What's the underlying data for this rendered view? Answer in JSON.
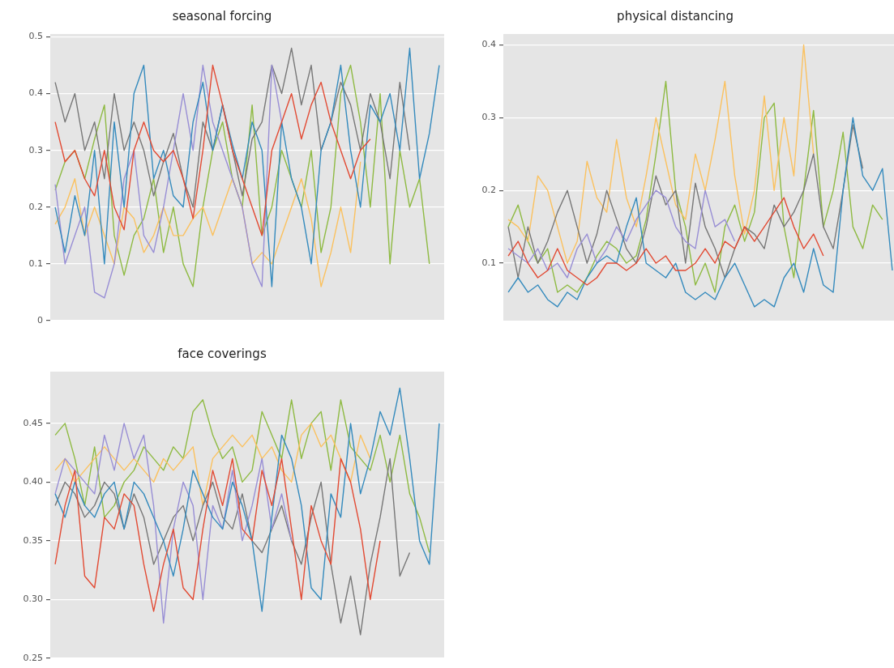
{
  "chart_data": [
    {
      "type": "line",
      "title": "seasonal forcing",
      "grid": "y",
      "tick_labels": "y",
      "marker": "none",
      "categories": [
        null,
        null,
        null,
        null,
        null,
        null,
        null,
        null,
        null,
        null,
        null,
        null,
        null,
        null,
        null,
        null,
        null,
        null,
        null,
        null,
        null,
        null,
        null,
        null,
        null,
        null,
        null,
        null,
        null,
        null,
        null,
        null,
        null,
        null,
        null,
        null,
        null,
        null,
        null,
        null
      ],
      "ylim": [
        0,
        0.505
      ],
      "yticks": [
        0,
        {
          "value": 0.1,
          "label": "0.1"
        },
        {
          "value": 0.2,
          "label": "0.2"
        },
        {
          "value": 0.3,
          "label": "0.3"
        },
        {
          "value": 0.4,
          "label": "0.4"
        },
        {
          "value": 0.5,
          "label": "0.5"
        }
      ],
      "series": [
        {
          "color": "#e24a33",
          "values": [
            0.35,
            0.28,
            0.3,
            0.25,
            0.22,
            0.3,
            0.2,
            0.16,
            0.3,
            0.35,
            0.3,
            0.28,
            0.3,
            0.25,
            0.18,
            0.3,
            0.45,
            0.38,
            0.3,
            0.25,
            0.2,
            0.15,
            0.3,
            0.35,
            0.4,
            0.32,
            0.38,
            0.42,
            0.35,
            0.3,
            0.25,
            0.3,
            0.32,
            null,
            null,
            null,
            null,
            null,
            null,
            null
          ]
        },
        {
          "color": "#348abd",
          "values": [
            0.2,
            0.12,
            0.22,
            0.15,
            0.3,
            0.1,
            0.35,
            0.2,
            0.4,
            0.45,
            0.25,
            0.3,
            0.22,
            0.2,
            0.35,
            0.42,
            0.3,
            0.38,
            0.31,
            0.25,
            0.35,
            0.3,
            0.06,
            0.35,
            0.25,
            0.2,
            0.1,
            0.3,
            0.35,
            0.45,
            0.3,
            0.2,
            0.38,
            0.35,
            0.4,
            0.3,
            0.48,
            0.25,
            0.33,
            0.45
          ]
        },
        {
          "color": "#988ed5",
          "values": [
            0.24,
            0.1,
            0.15,
            0.2,
            0.05,
            0.04,
            0.1,
            0.25,
            0.3,
            0.15,
            0.12,
            0.2,
            0.3,
            0.4,
            0.3,
            0.45,
            0.35,
            0.3,
            0.25,
            0.2,
            0.1,
            0.06,
            0.45,
            0.35,
            null,
            null,
            null,
            null,
            null,
            null,
            null,
            null,
            null,
            null,
            null,
            null,
            null,
            null,
            null,
            null
          ]
        },
        {
          "color": "#777777",
          "values": [
            0.42,
            0.35,
            0.4,
            0.3,
            0.35,
            0.25,
            0.4,
            0.3,
            0.35,
            0.3,
            0.22,
            0.28,
            0.33,
            0.25,
            0.2,
            0.35,
            0.3,
            0.38,
            0.3,
            0.22,
            0.32,
            0.35,
            0.45,
            0.4,
            0.48,
            0.38,
            0.45,
            0.3,
            0.35,
            0.42,
            0.38,
            0.3,
            0.4,
            0.35,
            0.25,
            0.42,
            0.3,
            null,
            null,
            null
          ]
        },
        {
          "color": "#fbc15e",
          "values": [
            0.17,
            0.2,
            0.25,
            0.15,
            0.2,
            0.15,
            0.1,
            0.2,
            0.18,
            0.12,
            0.15,
            0.2,
            0.15,
            0.15,
            0.18,
            0.2,
            0.15,
            0.2,
            0.25,
            0.2,
            0.1,
            0.12,
            0.1,
            0.15,
            0.2,
            0.25,
            0.18,
            0.06,
            0.12,
            0.2,
            0.12,
            0.28,
            null,
            null,
            null,
            null,
            null,
            null,
            null,
            null
          ]
        },
        {
          "color": "#8eba42",
          "values": [
            0.23,
            0.28,
            0.3,
            0.25,
            0.32,
            0.38,
            0.15,
            0.08,
            0.15,
            0.18,
            0.25,
            0.12,
            0.2,
            0.1,
            0.06,
            0.2,
            0.3,
            0.35,
            0.25,
            0.2,
            0.38,
            0.15,
            0.2,
            0.3,
            0.25,
            0.2,
            0.3,
            0.12,
            0.2,
            0.4,
            0.45,
            0.35,
            0.2,
            0.4,
            0.1,
            0.3,
            0.2,
            0.25,
            0.1,
            null
          ]
        }
      ]
    },
    {
      "type": "line",
      "title": "physical distancing",
      "grid": "y",
      "tick_labels": "y",
      "marker": "none",
      "categories": [
        null,
        null,
        null,
        null,
        null,
        null,
        null,
        null,
        null,
        null,
        null,
        null,
        null,
        null,
        null,
        null,
        null,
        null,
        null,
        null,
        null,
        null,
        null,
        null,
        null,
        null,
        null,
        null,
        null,
        null,
        null,
        null,
        null,
        null,
        null,
        null,
        null,
        null,
        null,
        null
      ],
      "ylim": [
        0.021,
        0.415
      ],
      "yticks": [
        {
          "value": 0.1,
          "label": "0.1"
        },
        {
          "value": 0.2,
          "label": "0.2"
        },
        {
          "value": 0.3,
          "label": "0.3"
        },
        {
          "value": 0.4,
          "label": "0.4"
        }
      ],
      "series": [
        {
          "color": "#e24a33",
          "values": [
            0.11,
            0.13,
            0.1,
            0.08,
            0.09,
            0.12,
            0.09,
            0.08,
            0.07,
            0.08,
            0.1,
            0.1,
            0.09,
            0.1,
            0.12,
            0.1,
            0.11,
            0.09,
            0.09,
            0.1,
            0.12,
            0.1,
            0.13,
            0.12,
            0.15,
            0.13,
            0.15,
            0.17,
            0.19,
            0.15,
            0.12,
            0.14,
            0.11,
            null,
            null,
            null,
            null,
            null,
            null,
            null
          ]
        },
        {
          "color": "#348abd",
          "values": [
            0.06,
            0.08,
            0.06,
            0.07,
            0.05,
            0.04,
            0.06,
            0.05,
            0.08,
            0.1,
            0.11,
            0.1,
            0.15,
            0.19,
            0.1,
            0.09,
            0.08,
            0.1,
            0.06,
            0.05,
            0.06,
            0.05,
            0.08,
            0.1,
            0.07,
            0.04,
            0.05,
            0.04,
            0.08,
            0.1,
            0.06,
            0.12,
            0.07,
            0.06,
            0.2,
            0.3,
            0.22,
            0.2,
            0.23,
            0.09
          ]
        },
        {
          "color": "#988ed5",
          "values": [
            0.12,
            0.11,
            0.1,
            0.12,
            0.09,
            0.1,
            0.08,
            0.12,
            0.14,
            0.1,
            0.12,
            0.15,
            0.13,
            0.16,
            0.18,
            0.2,
            0.19,
            0.15,
            0.13,
            0.12,
            0.2,
            0.15,
            0.16,
            0.13,
            null,
            null,
            null,
            null,
            null,
            null,
            null,
            null,
            null,
            null,
            null,
            null,
            null,
            null,
            null,
            null
          ]
        },
        {
          "color": "#777777",
          "values": [
            0.15,
            0.08,
            0.15,
            0.1,
            0.13,
            0.17,
            0.2,
            0.15,
            0.1,
            0.14,
            0.2,
            0.16,
            0.12,
            0.1,
            0.15,
            0.22,
            0.18,
            0.2,
            0.1,
            0.21,
            0.15,
            0.12,
            0.08,
            0.12,
            0.15,
            0.14,
            0.12,
            0.18,
            0.15,
            0.17,
            0.2,
            0.25,
            0.15,
            0.12,
            0.2,
            0.29,
            0.23,
            null,
            null,
            null
          ]
        },
        {
          "color": "#fbc15e",
          "values": [
            0.16,
            0.15,
            0.13,
            0.22,
            0.2,
            0.15,
            0.1,
            0.13,
            0.24,
            0.19,
            0.17,
            0.27,
            0.19,
            0.15,
            0.22,
            0.3,
            0.24,
            0.18,
            0.16,
            0.25,
            0.2,
            0.27,
            0.35,
            0.22,
            0.14,
            0.2,
            0.33,
            0.2,
            0.3,
            0.22,
            0.4,
            0.25,
            null,
            null,
            null,
            null,
            null,
            null,
            null,
            null
          ]
        },
        {
          "color": "#8eba42",
          "values": [
            0.15,
            0.18,
            0.13,
            0.1,
            0.12,
            0.06,
            0.07,
            0.06,
            0.08,
            0.11,
            0.13,
            0.12,
            0.1,
            0.11,
            0.16,
            0.25,
            0.35,
            0.2,
            0.15,
            0.07,
            0.1,
            0.06,
            0.15,
            0.18,
            0.13,
            0.17,
            0.3,
            0.32,
            0.15,
            0.08,
            0.2,
            0.31,
            0.15,
            0.2,
            0.28,
            0.15,
            0.12,
            0.18,
            0.16,
            null
          ]
        }
      ]
    },
    {
      "type": "line",
      "title": "face coverings",
      "grid": "y",
      "tick_labels": "y",
      "marker": "none",
      "categories": [
        null,
        null,
        null,
        null,
        null,
        null,
        null,
        null,
        null,
        null,
        null,
        null,
        null,
        null,
        null,
        null,
        null,
        null,
        null,
        null,
        null,
        null,
        null,
        null,
        null,
        null,
        null,
        null,
        null,
        null,
        null,
        null,
        null,
        null,
        null,
        null,
        null,
        null,
        null,
        null
      ],
      "ylim": [
        0.25,
        0.494
      ],
      "yticks": [
        {
          "value": 0.25,
          "label": "0.25"
        },
        {
          "value": 0.3,
          "label": "0.30"
        },
        {
          "value": 0.35,
          "label": "0.35"
        },
        {
          "value": 0.4,
          "label": "0.40"
        },
        {
          "value": 0.45,
          "label": "0.45"
        }
      ],
      "series": [
        {
          "color": "#e24a33",
          "values": [
            0.33,
            0.38,
            0.41,
            0.32,
            0.31,
            0.37,
            0.36,
            0.39,
            0.38,
            0.33,
            0.29,
            0.33,
            0.36,
            0.31,
            0.3,
            0.36,
            0.41,
            0.38,
            0.42,
            0.36,
            0.35,
            0.41,
            0.38,
            0.42,
            0.36,
            0.3,
            0.38,
            0.35,
            0.33,
            0.42,
            0.4,
            0.36,
            0.3,
            0.35,
            null,
            null,
            null,
            null,
            null,
            null
          ]
        },
        {
          "color": "#348abd",
          "values": [
            0.39,
            0.37,
            0.4,
            0.38,
            0.37,
            0.39,
            0.4,
            0.36,
            0.4,
            0.39,
            0.37,
            0.35,
            0.32,
            0.36,
            0.41,
            0.39,
            0.37,
            0.36,
            0.4,
            0.38,
            0.35,
            0.29,
            0.37,
            0.44,
            0.42,
            0.38,
            0.31,
            0.3,
            0.39,
            0.37,
            0.45,
            0.39,
            0.42,
            0.46,
            0.44,
            0.48,
            0.42,
            0.35,
            0.33,
            0.45
          ]
        },
        {
          "color": "#988ed5",
          "values": [
            0.39,
            0.42,
            0.41,
            0.4,
            0.39,
            0.44,
            0.41,
            0.45,
            0.42,
            0.44,
            0.38,
            0.28,
            0.36,
            0.4,
            0.38,
            0.3,
            0.38,
            0.36,
            0.41,
            0.35,
            0.38,
            0.42,
            0.36,
            0.39,
            0.35,
            null,
            null,
            null,
            null,
            null,
            null,
            null,
            null,
            null,
            null,
            null,
            null,
            null,
            null,
            null
          ]
        },
        {
          "color": "#777777",
          "values": [
            0.38,
            0.4,
            0.39,
            0.37,
            0.38,
            0.4,
            0.39,
            0.36,
            0.39,
            0.37,
            0.33,
            0.35,
            0.37,
            0.38,
            0.35,
            0.38,
            0.4,
            0.37,
            0.36,
            0.39,
            0.35,
            0.34,
            0.36,
            0.38,
            0.35,
            0.33,
            0.37,
            0.4,
            0.33,
            0.28,
            0.32,
            0.27,
            0.33,
            0.37,
            0.42,
            0.32,
            0.34,
            null,
            null,
            null
          ]
        },
        {
          "color": "#fbc15e",
          "values": [
            0.41,
            0.42,
            0.4,
            0.41,
            0.42,
            0.43,
            0.42,
            0.41,
            0.42,
            0.41,
            0.4,
            0.42,
            0.41,
            0.42,
            0.43,
            0.38,
            0.42,
            0.43,
            0.44,
            0.43,
            0.44,
            0.42,
            0.43,
            0.41,
            0.4,
            0.44,
            0.45,
            0.43,
            0.44,
            0.42,
            0.4,
            0.44,
            0.42,
            null,
            null,
            null,
            null,
            null,
            null,
            null
          ]
        },
        {
          "color": "#8eba42",
          "values": [
            0.44,
            0.45,
            0.42,
            0.38,
            0.43,
            0.37,
            0.38,
            0.4,
            0.41,
            0.43,
            0.42,
            0.41,
            0.43,
            0.42,
            0.46,
            0.47,
            0.44,
            0.42,
            0.43,
            0.4,
            0.41,
            0.46,
            0.44,
            0.42,
            0.47,
            0.42,
            0.45,
            0.46,
            0.41,
            0.47,
            0.43,
            0.42,
            0.41,
            0.44,
            0.4,
            0.44,
            0.39,
            0.37,
            0.34,
            null
          ]
        }
      ]
    }
  ]
}
